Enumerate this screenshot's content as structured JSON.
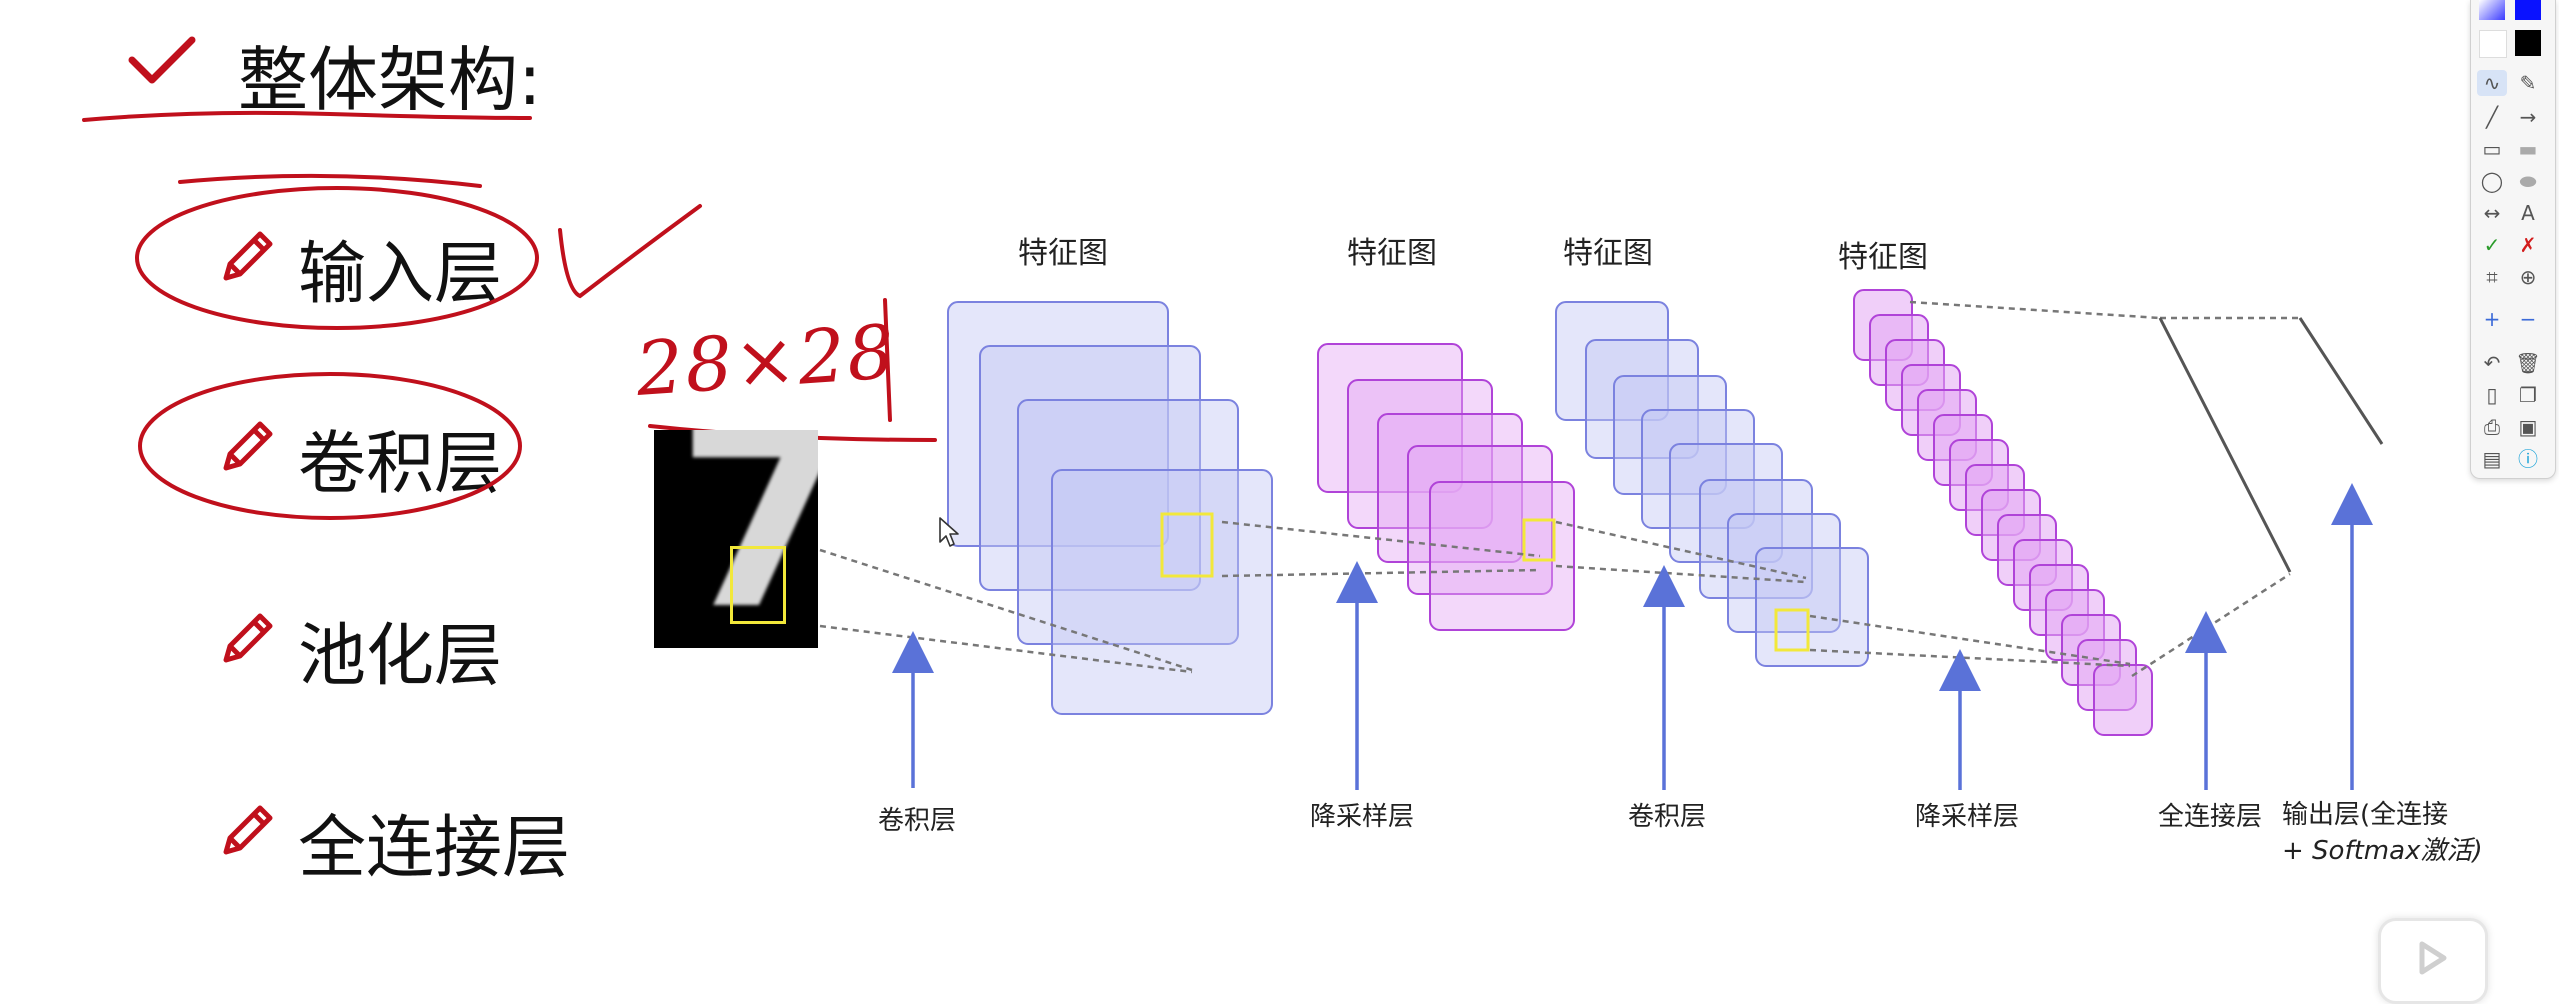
{
  "heading": {
    "title": "整体架构:"
  },
  "outline": {
    "items": [
      {
        "label": "输入层"
      },
      {
        "label": "卷积层"
      },
      {
        "label": "池化层"
      },
      {
        "label": "全连接层"
      }
    ]
  },
  "annotation": {
    "handwritten_size": "28×28"
  },
  "diagram": {
    "feature_map_labels": [
      "特征图",
      "特征图",
      "特征图",
      "特征图"
    ],
    "stage_labels": [
      "卷积层",
      "降采样层",
      "卷积层",
      "降采样层",
      "全连接层"
    ],
    "output_label_line1": "输出层(全连接",
    "output_label_line2": "+ Softmax激活)",
    "input_digit": "7"
  },
  "colors": {
    "accent_red": "#c0101c",
    "map_blue": "#c4c8f4",
    "map_blue_edge": "#7b82df",
    "map_purple": "#e4a8f4",
    "map_purple_edge": "#b043d8",
    "arrow_blue": "#5a72d8",
    "highlight_yellow": "#f2e83a"
  }
}
